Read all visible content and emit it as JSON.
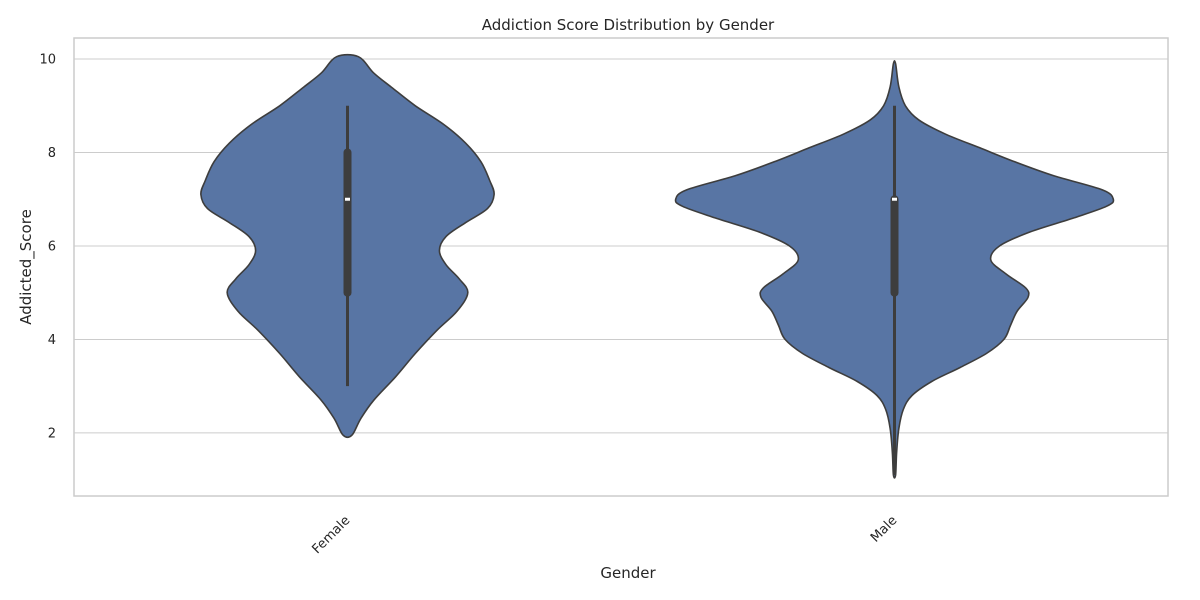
{
  "chart_data": {
    "type": "violin",
    "title": "Addiction Score Distribution by Gender",
    "xlabel": "Gender",
    "ylabel": "Addicted_Score",
    "ylim": [
      0.65,
      10.45
    ],
    "yticks": [
      2,
      4,
      6,
      8,
      10
    ],
    "grid": true,
    "colors": {
      "violin_fill": "#5875a4",
      "edge": "#3d3d3d",
      "grid": "#cccccc",
      "median": "#ffffff"
    },
    "categories": [
      "Female",
      "Male"
    ],
    "series": [
      {
        "category": "Female",
        "whisker": [
          3,
          9
        ],
        "quartiles": [
          5,
          8
        ],
        "median": 7,
        "range": [
          1.95,
          10.05
        ],
        "profile": [
          [
            1.95,
            0.02
          ],
          [
            2.3,
            0.06
          ],
          [
            2.7,
            0.12
          ],
          [
            3.2,
            0.22
          ],
          [
            3.7,
            0.31
          ],
          [
            4.2,
            0.41
          ],
          [
            4.6,
            0.5
          ],
          [
            5.0,
            0.55
          ],
          [
            5.3,
            0.51
          ],
          [
            5.6,
            0.45
          ],
          [
            5.9,
            0.42
          ],
          [
            6.2,
            0.45
          ],
          [
            6.5,
            0.54
          ],
          [
            6.8,
            0.64
          ],
          [
            7.1,
            0.67
          ],
          [
            7.4,
            0.65
          ],
          [
            7.8,
            0.61
          ],
          [
            8.2,
            0.54
          ],
          [
            8.6,
            0.44
          ],
          [
            9.0,
            0.31
          ],
          [
            9.4,
            0.2
          ],
          [
            9.7,
            0.12
          ],
          [
            10.05,
            0.05
          ]
        ]
      },
      {
        "category": "Male",
        "whisker": [
          1.1,
          9
        ],
        "quartiles": [
          5,
          7
        ],
        "median": 7,
        "range": [
          1.1,
          9.9
        ],
        "profile": [
          [
            1.1,
            0.005
          ],
          [
            1.6,
            0.01
          ],
          [
            2.1,
            0.02
          ],
          [
            2.5,
            0.04
          ],
          [
            2.8,
            0.08
          ],
          [
            3.1,
            0.17
          ],
          [
            3.4,
            0.3
          ],
          [
            3.7,
            0.42
          ],
          [
            4.0,
            0.5
          ],
          [
            4.3,
            0.53
          ],
          [
            4.6,
            0.56
          ],
          [
            4.9,
            0.61
          ],
          [
            5.1,
            0.6
          ],
          [
            5.4,
            0.51
          ],
          [
            5.7,
            0.44
          ],
          [
            6.0,
            0.48
          ],
          [
            6.3,
            0.62
          ],
          [
            6.6,
            0.82
          ],
          [
            6.85,
            0.97
          ],
          [
            7.0,
            1.0
          ],
          [
            7.2,
            0.95
          ],
          [
            7.5,
            0.73
          ],
          [
            7.8,
            0.55
          ],
          [
            8.1,
            0.39
          ],
          [
            8.4,
            0.23
          ],
          [
            8.7,
            0.11
          ],
          [
            9.0,
            0.05
          ],
          [
            9.4,
            0.02
          ],
          [
            9.9,
            0.005
          ]
        ]
      }
    ]
  }
}
